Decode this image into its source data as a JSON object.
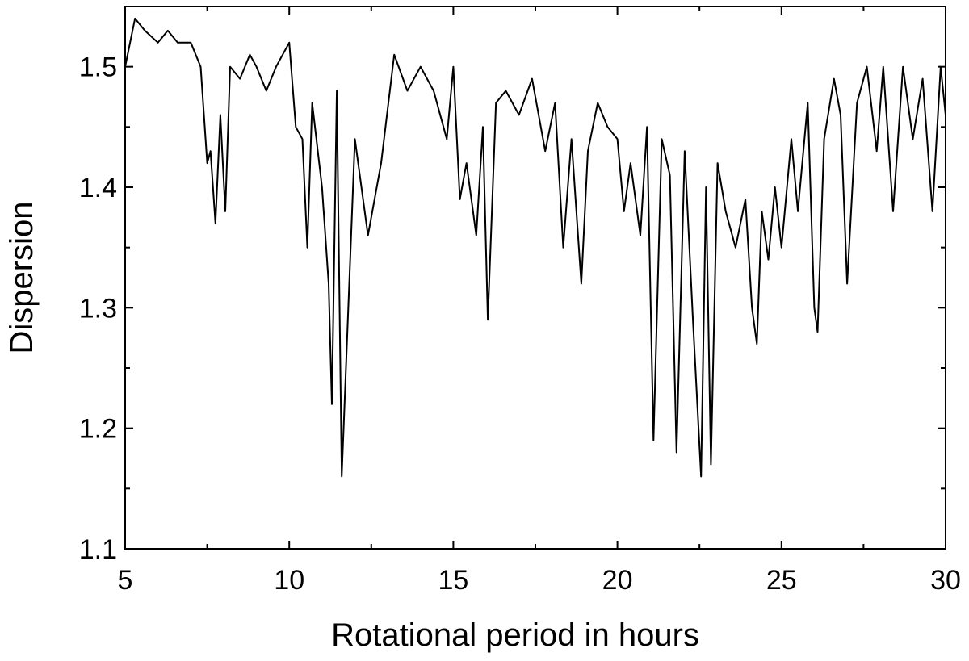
{
  "chart_data": {
    "type": "line",
    "title": "",
    "xlabel": "Rotational period in hours",
    "ylabel": "Dispersion",
    "xlim": [
      5,
      30
    ],
    "ylim": [
      1.1,
      1.55
    ],
    "xticks": [
      5,
      10,
      15,
      20,
      25,
      30
    ],
    "xtick_labels": [
      "5",
      "10",
      "15",
      "20",
      "25",
      "30"
    ],
    "yticks": [
      1.1,
      1.2,
      1.3,
      1.4,
      1.5
    ],
    "ytick_labels": [
      "1.1",
      "1.2",
      "1.3",
      "1.4",
      "1.5"
    ],
    "grid": false,
    "legend": "none",
    "line_color": "#000000",
    "series": [
      {
        "x": [
          5.0,
          5.3,
          5.6,
          6.0,
          6.3,
          6.6,
          7.0,
          7.3,
          7.5,
          7.6,
          7.75,
          7.9,
          8.05,
          8.2,
          8.5,
          8.8,
          9.0,
          9.3,
          9.6,
          10.0,
          10.2,
          10.4,
          10.55,
          10.7,
          11.0,
          11.2,
          11.3,
          11.45,
          11.6,
          12.0,
          12.4,
          12.8,
          13.2,
          13.6,
          14.0,
          14.4,
          14.8,
          15.0,
          15.2,
          15.4,
          15.7,
          15.9,
          16.05,
          16.3,
          16.6,
          17.0,
          17.4,
          17.8,
          18.1,
          18.35,
          18.6,
          18.9,
          19.1,
          19.4,
          19.7,
          20.0,
          20.2,
          20.4,
          20.7,
          20.9,
          21.1,
          21.35,
          21.6,
          21.8,
          22.05,
          22.3,
          22.55,
          22.7,
          22.85,
          23.05,
          23.3,
          23.6,
          23.9,
          24.1,
          24.25,
          24.4,
          24.6,
          24.8,
          25.0,
          25.3,
          25.5,
          25.8,
          26.0,
          26.1,
          26.3,
          26.6,
          26.8,
          27.0,
          27.3,
          27.6,
          27.9,
          28.1,
          28.4,
          28.7,
          29.0,
          29.3,
          29.6,
          29.85,
          30.0
        ],
        "y": [
          1.5,
          1.54,
          1.53,
          1.52,
          1.53,
          1.52,
          1.52,
          1.5,
          1.42,
          1.43,
          1.37,
          1.46,
          1.38,
          1.5,
          1.49,
          1.51,
          1.5,
          1.48,
          1.5,
          1.52,
          1.45,
          1.44,
          1.35,
          1.47,
          1.4,
          1.32,
          1.22,
          1.48,
          1.16,
          1.44,
          1.36,
          1.42,
          1.51,
          1.48,
          1.5,
          1.48,
          1.44,
          1.5,
          1.39,
          1.42,
          1.36,
          1.45,
          1.29,
          1.47,
          1.48,
          1.46,
          1.49,
          1.43,
          1.47,
          1.35,
          1.44,
          1.32,
          1.43,
          1.47,
          1.45,
          1.44,
          1.38,
          1.42,
          1.36,
          1.45,
          1.19,
          1.44,
          1.41,
          1.18,
          1.43,
          1.29,
          1.16,
          1.4,
          1.17,
          1.42,
          1.38,
          1.35,
          1.39,
          1.3,
          1.27,
          1.38,
          1.34,
          1.4,
          1.35,
          1.44,
          1.38,
          1.47,
          1.3,
          1.28,
          1.44,
          1.49,
          1.46,
          1.32,
          1.47,
          1.5,
          1.43,
          1.5,
          1.38,
          1.5,
          1.44,
          1.49,
          1.38,
          1.5,
          1.46
        ]
      }
    ]
  }
}
